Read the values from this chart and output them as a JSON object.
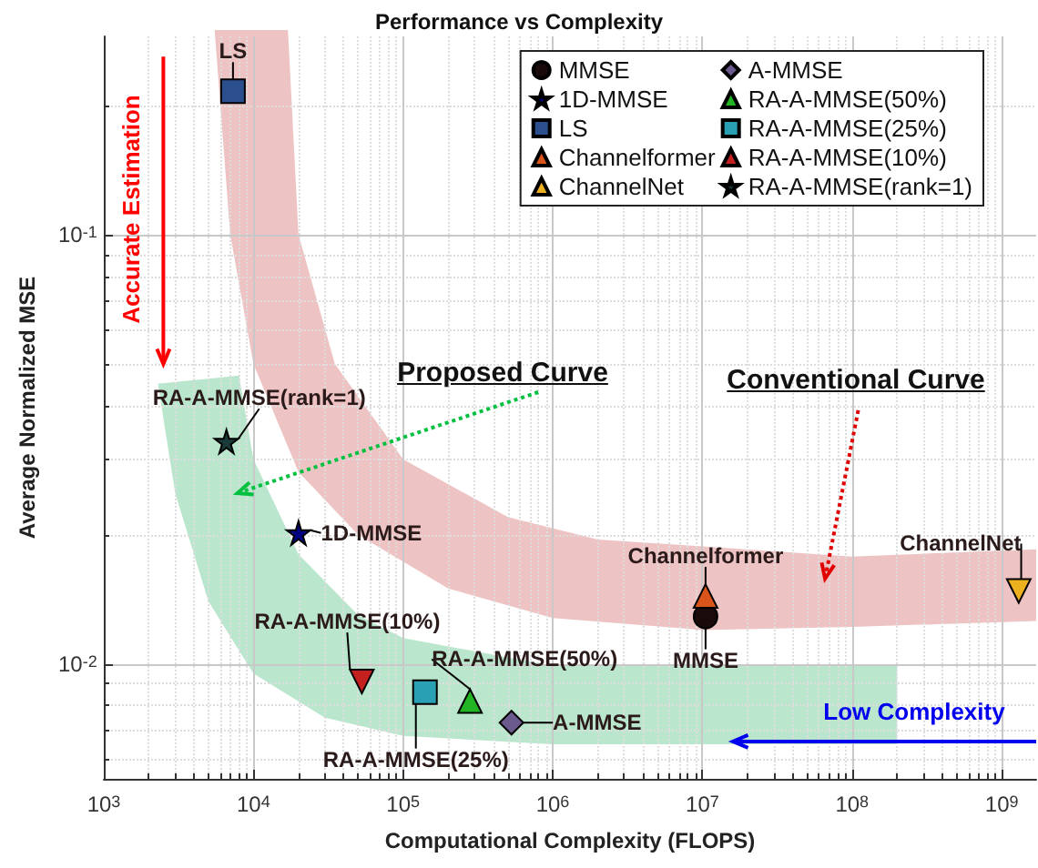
{
  "chart_data": {
    "type": "scatter",
    "title": "Performance vs Complexity",
    "xlabel": "Computational Complexity (FLOPS)",
    "ylabel": "Average Normalized MSE",
    "log": "xy",
    "grid": true,
    "legend": "top right",
    "xlim": [
      1000,
      1700000000
    ],
    "ylim": [
      0.0054,
      0.29
    ],
    "xticks": [
      {
        "value": 1000,
        "label": "10$^{3}$"
      },
      {
        "value": 10000,
        "label": "10$^{4}$"
      },
      {
        "value": 100000,
        "label": "10$^{5}$"
      },
      {
        "value": 1000000,
        "label": "10$^{6}$"
      },
      {
        "value": 10000000,
        "label": "10$^{7}$"
      },
      {
        "value": 100000000,
        "label": "10$^{8}$"
      },
      {
        "value": 1000000000,
        "label": "10$^{9}$"
      }
    ],
    "yticks": [
      {
        "value": 0.01,
        "label": "10$^{-2}$"
      },
      {
        "value": 0.1,
        "label": "10$^{-1}$"
      }
    ],
    "series": [
      {
        "name": "MMSE",
        "color": "#1a0a0a",
        "marker": "circle",
        "x": [
          10500000
        ],
        "values": [
          0.0129
        ]
      },
      {
        "name": "1D-MMSE",
        "color": "#000080",
        "marker": "star",
        "x": [
          20000
        ],
        "values": [
          0.0202
        ]
      },
      {
        "name": "LS",
        "color": "#2b4f8c",
        "marker": "square",
        "x": [
          7300
        ],
        "values": [
          0.216
        ]
      },
      {
        "name": "Channelformer",
        "color": "#d9541a",
        "marker": "triangle",
        "x": [
          10500000
        ],
        "values": [
          0.0144
        ]
      },
      {
        "name": "ChannelNet",
        "color": "#edb120",
        "marker": "triangle-down",
        "x": [
          1300000000
        ],
        "values": [
          0.0148
        ]
      },
      {
        "name": "A-MMSE",
        "color": "#6b5a8e",
        "marker": "diamond",
        "x": [
          530000
        ],
        "values": [
          0.0073
        ]
      },
      {
        "name": "RA-A-MMSE(50%)",
        "color": "#22b422",
        "marker": "triangle",
        "x": [
          280000
        ],
        "values": [
          0.0082
        ]
      },
      {
        "name": "RA-A-MMSE(25%)",
        "color": "#2aa0b4",
        "marker": "square",
        "x": [
          140000
        ],
        "values": [
          0.0086
        ]
      },
      {
        "name": "RA-A-MMSE(10%)",
        "color": "#c42020",
        "marker": "triangle-down",
        "x": [
          53000
        ],
        "values": [
          0.0091
        ]
      },
      {
        "name": "RA-A-MMSE(rank=1)",
        "color": "#1a3a3a",
        "marker": "star",
        "x": [
          6600
        ],
        "values": [
          0.033
        ]
      }
    ],
    "annotations": [
      "Accurate Estimation",
      "Proposed Curve",
      "Conventional Curve",
      "Low Complexity"
    ]
  }
}
